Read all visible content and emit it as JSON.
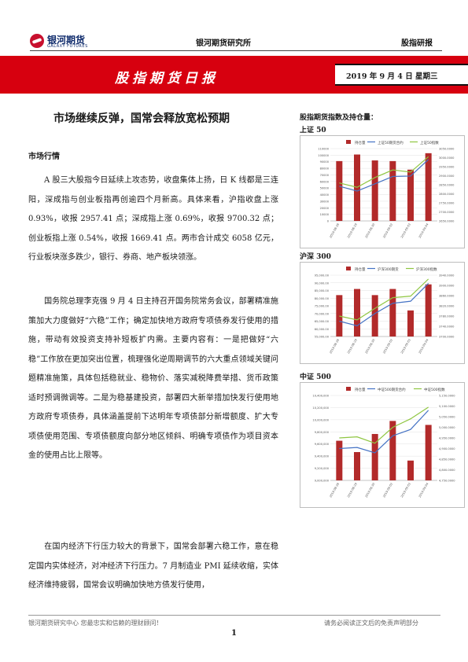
{
  "header": {
    "logo_cn": "银河期货",
    "logo_en": "GALAXY FUTURES",
    "institute": "银河期货研究所",
    "category": "股指研报"
  },
  "banner": {
    "title": "股指期货日报",
    "date": "2019 年 9 月 4 日   星期三"
  },
  "headline": "市场继续反弹，国常会释放宽松预期",
  "section_title": "市场行情",
  "paragraphs": [
    "A 股三大股指今日延续上攻态势，收盘集体上扬，日 K 线都是三连阳，深成指与创业板指再创逾四个月新高。具体来看，沪指收盘上涨 0.93%，收报 2957.41 点；深成指上涨 0.69%，收报 9700.32 点；创业板指上涨 0.54%，收报 1669.41 点。两市合计成交 6058 亿元，行业板块涨多跌少，银行、券商、地产板块领涨。",
    "国务院总理李克强 9 月 4 日主持召开国务院常务会议，部署精准施策加大力度做好“六稳”工作；确定加快地方政府专项债券发行使用的措施，带动有效投资支持补短板扩内需。主要内容有：一是把做好“六稳”工作放在更加突出位置，梳理强化逆周期调节的六大重点领域关键问题精准施策，具体包括稳就业、稳物价、落实减税降费举措、货币政策适时预调微调等。二是为稳基建投资，部署四大新举措加快发行使用地方政府专项债券，具体涵盖提前下达明年专项债部分新增额度、扩大专项债使用范围、专项债额度向部分地区倾斜、明确专项债作为项目资本金的使用占比上限等。",
    "在国内经济下行压力较大的背景下，国常会部署六稳工作，意在稳定国内实体经济，对冲经济下行压力。7 月制造业 PMI 延续收缩，实体经济维持疲弱，国常会议明确加快地方债发行使用，"
  ],
  "sidebar": {
    "title": "股指期货指数及持仓量："
  },
  "footer": {
    "left": "银河期货研究中心  您最忠实和信赖的理财顾问！",
    "right": "请务必阅读正文后的免责声明部分",
    "page": "1"
  },
  "colors": {
    "banner_red": "#d7000f",
    "bar": "#b22a2a",
    "line_index": "#4472c4",
    "line_other": "#8fc641"
  },
  "chart_data": [
    {
      "type": "bar",
      "title": "上证 50",
      "categories": [
        "2019-08-28",
        "2019-08-29",
        "2019-08-30",
        "2019-09-02",
        "2019-09-03",
        "2019-09-04"
      ],
      "legend": [
        "持仓量",
        "上证50期货合约",
        "上证50指数"
      ],
      "series": [
        {
          "name": "持仓量",
          "values": [
            91000,
            101000,
            92000,
            91000,
            78000,
            103000
          ]
        },
        {
          "name": "上证50期货合约",
          "values": [
            2842,
            2815,
            2855,
            2896,
            2898,
            2990
          ]
        },
        {
          "name": "上证50指数",
          "values": [
            2860,
            2836,
            2890,
            2932,
            2920,
            3005
          ]
        }
      ],
      "ylim_left": [
        0,
        110000
      ],
      "yticks_left": [
        "0",
        "10000",
        "20000",
        "30000",
        "40000",
        "50000",
        "60000",
        "70000",
        "80000",
        "90000",
        "100000",
        "110000"
      ],
      "ylim_right": [
        2650,
        3050
      ],
      "yticks_right": [
        "2650.0000",
        "2700.0000",
        "2750.0000",
        "2800.0000",
        "2850.0000",
        "2900.0000",
        "2950.0000",
        "3000.0000",
        "3050.0000"
      ]
    },
    {
      "type": "bar",
      "title": "沪深 300",
      "categories": [
        "2019-08-28",
        "2019-08-29",
        "2019-08-30",
        "2019-09-02",
        "2019-09-03",
        "2019-09-04"
      ],
      "legend": [
        "持仓量",
        "沪深300期货",
        "沪深300指数"
      ],
      "series": [
        {
          "name": "持仓量",
          "values": [
            82000,
            86000,
            82000,
            86000,
            72000,
            89000
          ]
        },
        {
          "name": "沪深300期货",
          "values": [
            3760,
            3742,
            3790,
            3830,
            3838,
            3908
          ]
        },
        {
          "name": "沪深300指数",
          "values": [
            3780,
            3765,
            3810,
            3852,
            3858,
            3925
          ]
        }
      ],
      "ylim_left": [
        55000,
        95000
      ],
      "yticks_left": [
        "55,000.00",
        "60,000.00",
        "65,000.00",
        "70,000.00",
        "75,000.00",
        "80,000.00",
        "85,000.00",
        "90,000.00",
        "95,000.00"
      ],
      "ylim_right": [
        3700,
        3940
      ],
      "yticks_right": [
        "3700.0000",
        "3740.0000",
        "3780.0000",
        "3820.0000",
        "3860.0000",
        "3900.0000",
        "3940.0000"
      ]
    },
    {
      "type": "bar",
      "title": "中证 500",
      "categories": [
        "2019-08-28",
        "2019-08-29",
        "2019-08-30",
        "2019-09-02",
        "2019-09-03",
        "2019-09-04"
      ],
      "legend": [
        "持仓量",
        "中证500期货合约",
        "中证500指数"
      ],
      "series": [
        {
          "name": "持仓量",
          "values": [
            9700000,
            9500000,
            9820000,
            10050000,
            9350000,
            9980000
          ]
        },
        {
          "name": "中证500期货合约",
          "values": [
            4900,
            4905,
            4880,
            4960,
            4990,
            5080
          ]
        },
        {
          "name": "中证500指数",
          "values": [
            4950,
            4955,
            4925,
            5000,
            5040,
            5095
          ]
        }
      ],
      "ylim_left": [
        9000000,
        10500000
      ],
      "yticks_left": [
        "9,000,000",
        "9,200,000",
        "9,400,000",
        "9,600,000",
        "9,800,000",
        "10,000,000",
        "10,200,000",
        "10,400,000"
      ],
      "ylim_right": [
        4750,
        5150
      ],
      "yticks_right": [
        "4,750.0000",
        "4,800.0000",
        "4,850.0000",
        "4,900.0000",
        "4,950.0000",
        "5,000.0000",
        "5,050.0000",
        "5,100.0000",
        "5,150.0000"
      ]
    }
  ]
}
